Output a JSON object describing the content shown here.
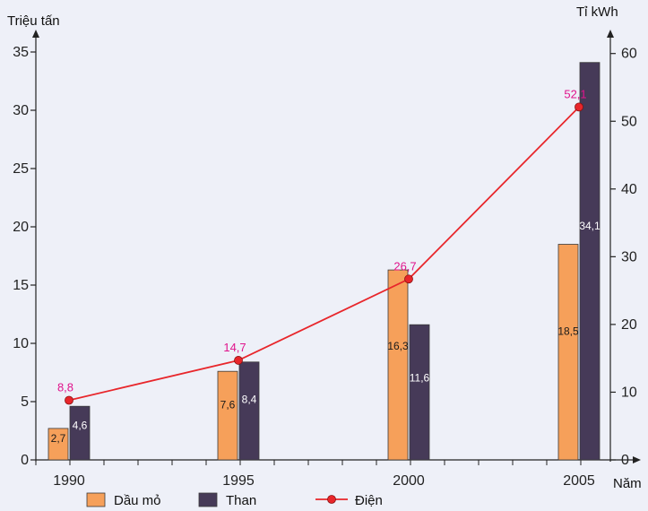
{
  "chart_data": {
    "type": "bar",
    "categories": [
      "1990",
      "1995",
      "2000",
      "2005"
    ],
    "left_axis": {
      "title": "Triệu tấn",
      "range": [
        0,
        35
      ],
      "ticks": [
        0,
        5,
        10,
        15,
        20,
        25,
        30,
        35
      ]
    },
    "right_axis": {
      "title": "Tỉ kWh",
      "range": [
        0,
        60
      ],
      "ticks": [
        0,
        10,
        20,
        30,
        40,
        50,
        60
      ]
    },
    "xlabel": "Năm",
    "series": [
      {
        "name": "Dầu mỏ",
        "type": "bar",
        "axis": "left",
        "color": "#f6a05a",
        "values": [
          2.7,
          7.6,
          16.3,
          18.5
        ],
        "labels": [
          "2,7",
          "7,6",
          "16,3",
          "18,5"
        ]
      },
      {
        "name": "Than",
        "type": "bar",
        "axis": "left",
        "color": "#463a58",
        "values": [
          4.6,
          8.4,
          11.6,
          34.1
        ],
        "labels": [
          "4,6",
          "8,4",
          "11,6",
          "34,1"
        ]
      },
      {
        "name": "Điện",
        "type": "line",
        "axis": "right",
        "color": "#e8262b",
        "values": [
          8.8,
          14.7,
          26.7,
          52.1
        ],
        "labels": [
          "8,8",
          "14,7",
          "26,7",
          "52,1"
        ]
      }
    ],
    "legend": {
      "position": "bottom",
      "entries": [
        "Dầu mỏ",
        "Than",
        "Điện"
      ]
    },
    "colors": {
      "background": "#eef0f8",
      "axis": "#222222",
      "line_label": "#e0148c"
    }
  }
}
